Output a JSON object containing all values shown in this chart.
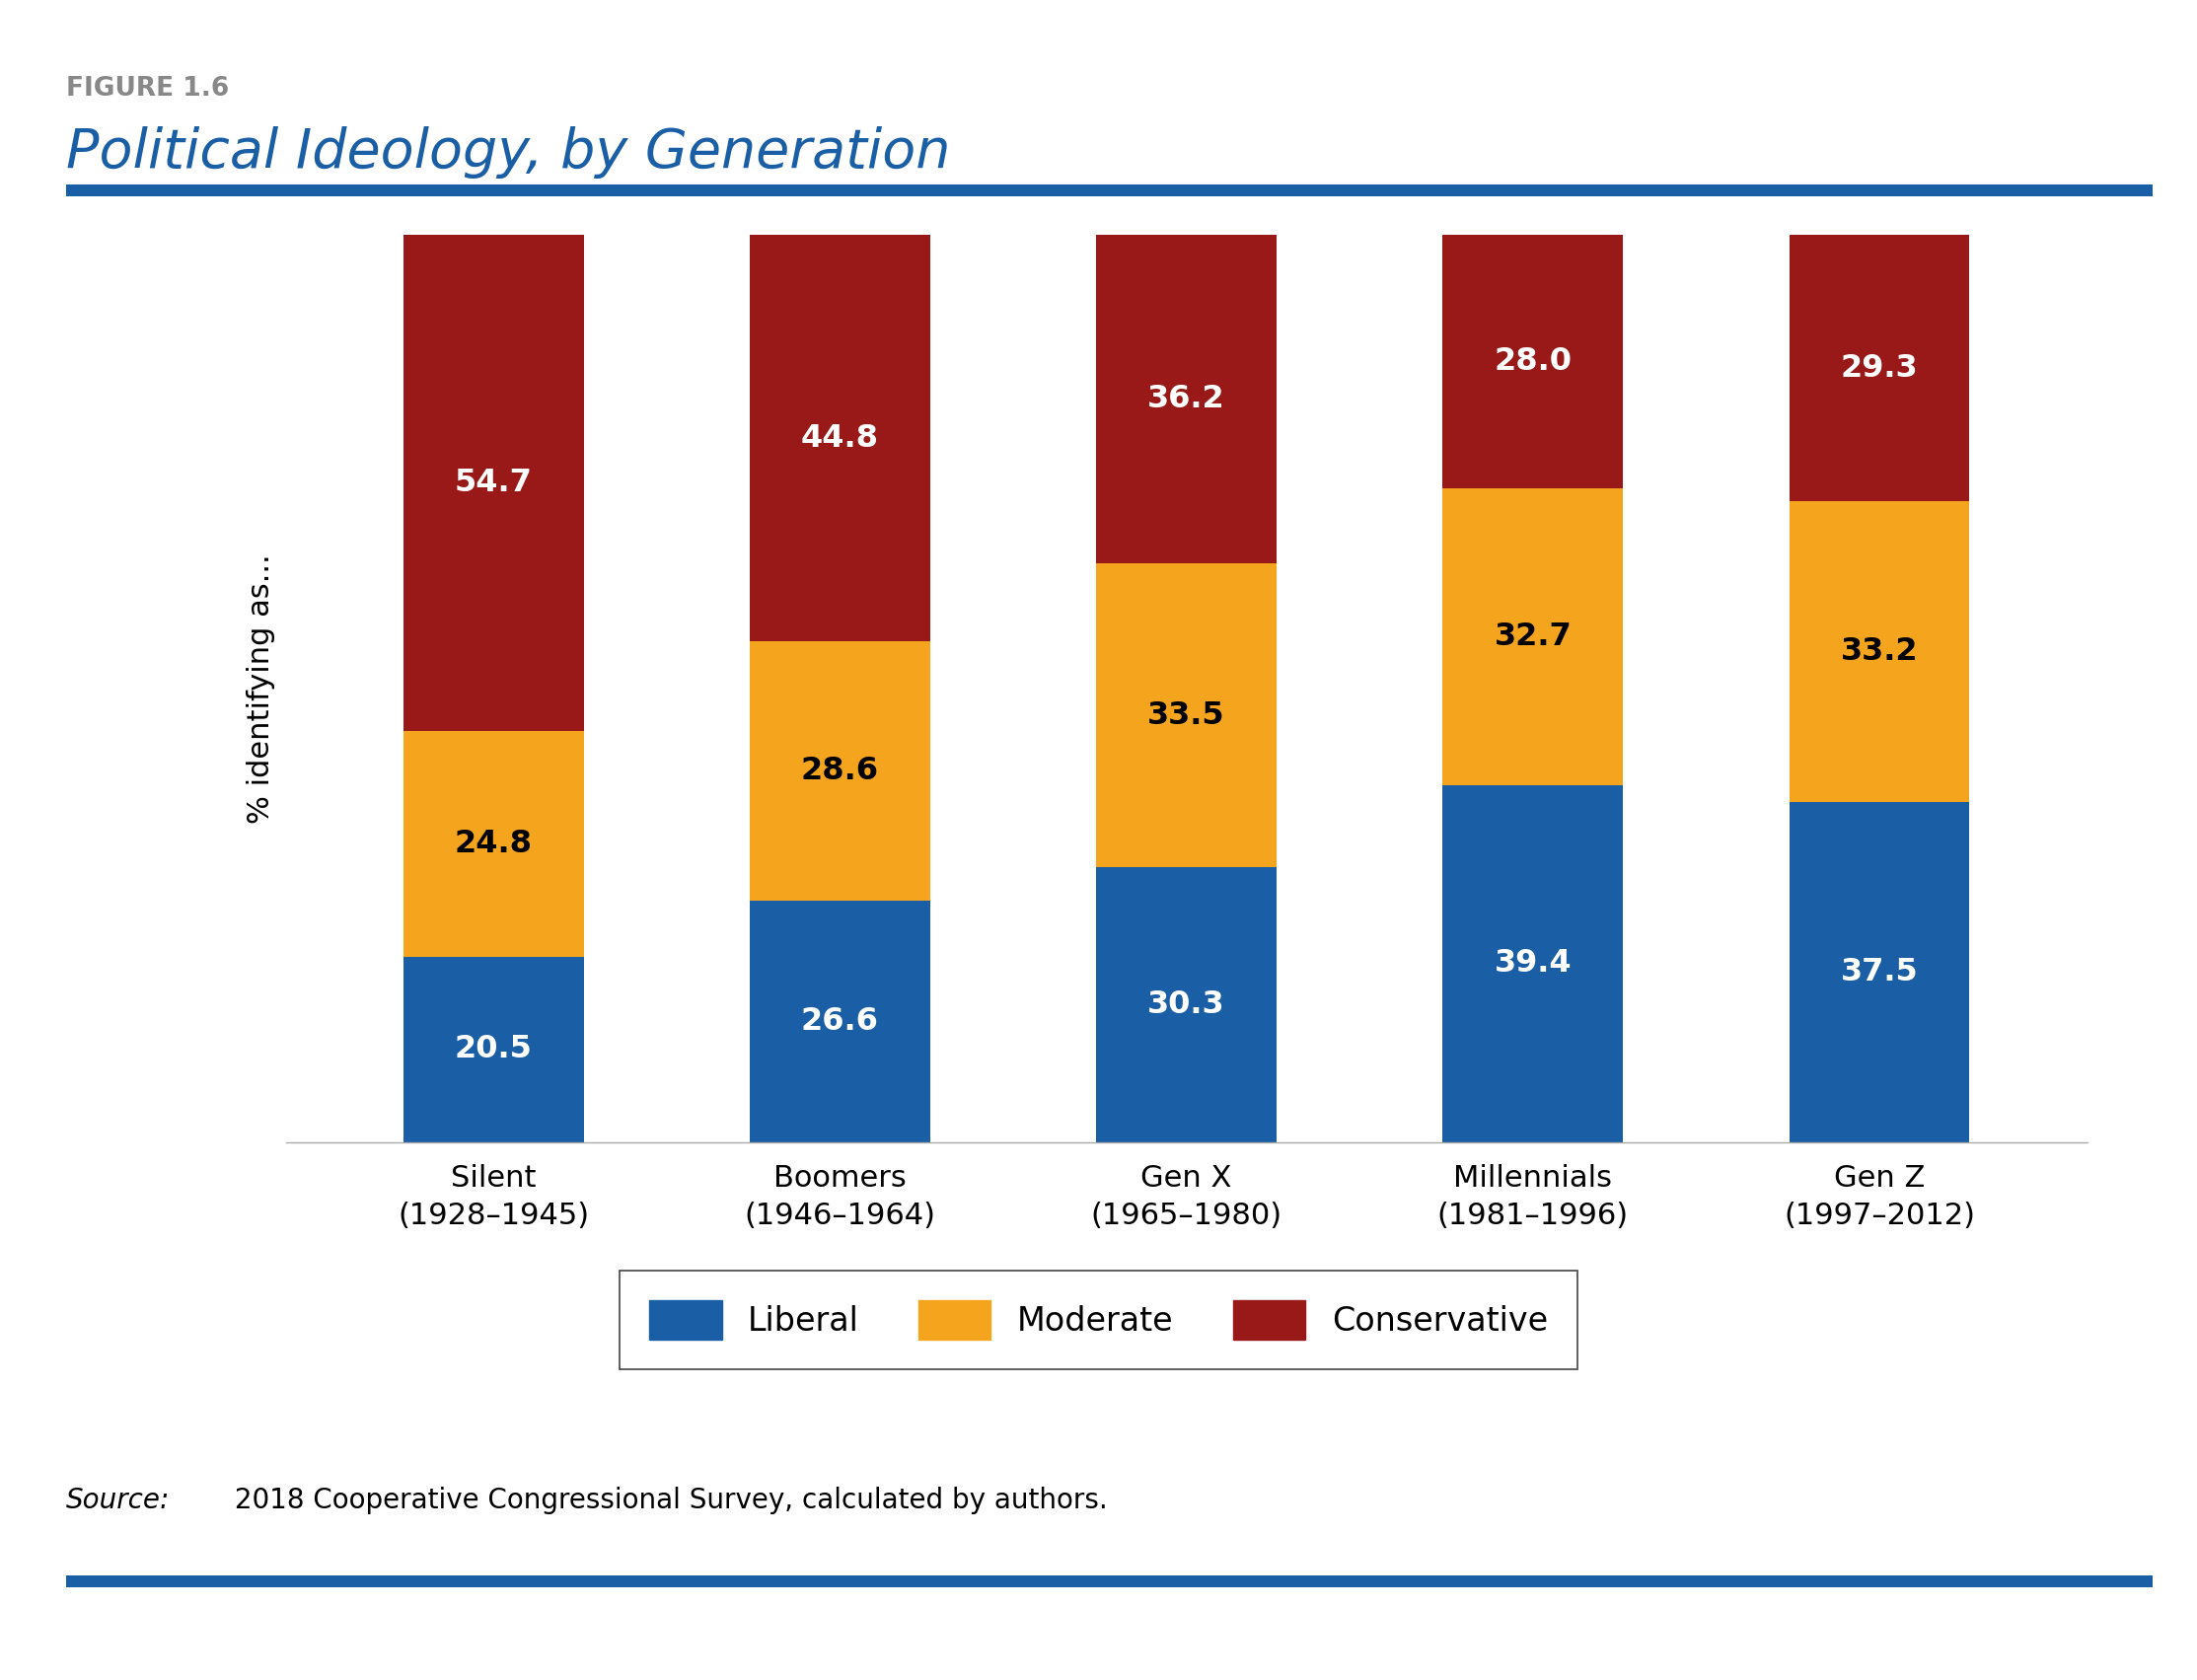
{
  "figure_label": "FIGURE 1.6",
  "title": "Political Ideology, by Generation",
  "source_rest": " 2018 Cooperative Congressional Survey, calculated by authors.",
  "ylabel": "% identifying as...",
  "categories": [
    "Silent\n(1928–1945)",
    "Boomers\n(1946–1964)",
    "Gen X\n(1965–1980)",
    "Millennials\n(1981–1996)",
    "Gen Z\n(1997–2012)"
  ],
  "liberal": [
    20.5,
    26.6,
    30.3,
    39.4,
    37.5
  ],
  "moderate": [
    24.8,
    28.6,
    33.5,
    32.7,
    33.2
  ],
  "conservative": [
    54.7,
    44.8,
    36.2,
    28.0,
    29.3
  ],
  "liberal_color": "#1A5EA6",
  "moderate_color": "#F5A51D",
  "conservative_color": "#991818",
  "label_color_liberal": "white",
  "label_color_moderate": "black",
  "label_color_conservative": "white",
  "bar_width": 0.52,
  "ylim": [
    0,
    100
  ],
  "figure_label_color": "#888888",
  "title_color": "#1A5EA6",
  "rule_color": "#1A5EA6",
  "background_color": "#ffffff",
  "legend_labels": [
    "Liberal",
    "Moderate",
    "Conservative"
  ]
}
